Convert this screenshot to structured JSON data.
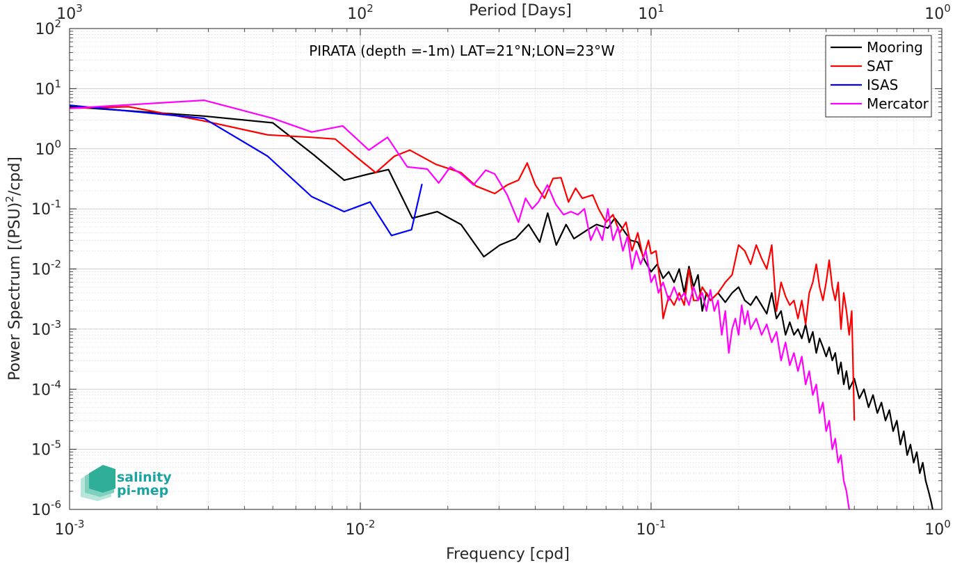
{
  "chart_data": {
    "type": "line",
    "title": "PIRATA (depth =-1m) LAT=21°N;LON=23°W",
    "xlabel": "Frequency [cpd]",
    "ylabel_main": "Power Spectrum [(PSU)",
    "ylabel_sup": "2",
    "ylabel_tail": "/cpd]",
    "x2label": "Period [Days]",
    "xscale": "log",
    "yscale": "log",
    "xlim": [
      0.001,
      1
    ],
    "ylim": [
      1e-06,
      100
    ],
    "grid": true,
    "legend_position": "top-right",
    "x_ticks": [
      {
        "base": "10",
        "exp": "-3",
        "value": 0.001
      },
      {
        "base": "10",
        "exp": "-2",
        "value": 0.01
      },
      {
        "base": "10",
        "exp": "-1",
        "value": 0.1
      },
      {
        "base": "10",
        "exp": "0",
        "value": 1
      }
    ],
    "x2_ticks": [
      {
        "base": "10",
        "exp": "3",
        "value": 0.001
      },
      {
        "base": "10",
        "exp": "2",
        "value": 0.01
      },
      {
        "base": "10",
        "exp": "1",
        "value": 0.1
      },
      {
        "base": "10",
        "exp": "0",
        "value": 1
      }
    ],
    "y_ticks": [
      {
        "base": "10",
        "exp": "2",
        "value": 100
      },
      {
        "base": "10",
        "exp": "1",
        "value": 10
      },
      {
        "base": "10",
        "exp": "0",
        "value": 1
      },
      {
        "base": "10",
        "exp": "-1",
        "value": 0.1
      },
      {
        "base": "10",
        "exp": "-2",
        "value": 0.01
      },
      {
        "base": "10",
        "exp": "-3",
        "value": 0.001
      },
      {
        "base": "10",
        "exp": "-4",
        "value": 0.0001
      },
      {
        "base": "10",
        "exp": "-5",
        "value": 1e-05
      },
      {
        "base": "10",
        "exp": "-6",
        "value": 1e-06
      }
    ],
    "series": [
      {
        "name": "Mooring",
        "color": "#000000",
        "points": [
          [
            0.001,
            5.0
          ],
          [
            0.0029,
            3.5
          ],
          [
            0.005,
            2.7
          ],
          [
            0.0069,
            0.8
          ],
          [
            0.0088,
            0.3
          ],
          [
            0.0107,
            0.38
          ],
          [
            0.0125,
            0.45
          ],
          [
            0.0151,
            0.07
          ],
          [
            0.0184,
            0.09
          ],
          [
            0.0222,
            0.055
          ],
          [
            0.0266,
            0.016
          ],
          [
            0.0302,
            0.025
          ],
          [
            0.0342,
            0.032
          ],
          [
            0.0379,
            0.055
          ],
          [
            0.0414,
            0.028
          ],
          [
            0.0441,
            0.085
          ],
          [
            0.0472,
            0.025
          ],
          [
            0.051,
            0.055
          ],
          [
            0.0543,
            0.032
          ],
          [
            0.0605,
            0.045
          ],
          [
            0.0649,
            0.055
          ],
          [
            0.071,
            0.048
          ],
          [
            0.075,
            0.07
          ],
          [
            0.079,
            0.05
          ],
          [
            0.085,
            0.03
          ],
          [
            0.09,
            0.028
          ],
          [
            0.095,
            0.014
          ],
          [
            0.1,
            0.009
          ],
          [
            0.105,
            0.012
          ],
          [
            0.11,
            0.007
          ],
          [
            0.115,
            0.009
          ],
          [
            0.12,
            0.006
          ],
          [
            0.125,
            0.01
          ],
          [
            0.13,
            0.004
          ],
          [
            0.135,
            0.011
          ],
          [
            0.14,
            0.005
          ],
          [
            0.145,
            0.008
          ],
          [
            0.15,
            0.002
          ],
          [
            0.155,
            0.004
          ],
          [
            0.16,
            0.003
          ],
          [
            0.17,
            0.004
          ],
          [
            0.18,
            0.0028
          ],
          [
            0.19,
            0.004
          ],
          [
            0.2,
            0.005
          ],
          [
            0.21,
            0.003
          ],
          [
            0.22,
            0.0025
          ],
          [
            0.23,
            0.0035
          ],
          [
            0.24,
            0.0025
          ],
          [
            0.25,
            0.0018
          ],
          [
            0.26,
            0.004
          ],
          [
            0.27,
            0.0015
          ],
          [
            0.28,
            0.002
          ],
          [
            0.29,
            0.0008
          ],
          [
            0.3,
            0.0013
          ],
          [
            0.31,
            0.0008
          ],
          [
            0.32,
            0.001
          ],
          [
            0.33,
            0.0007
          ],
          [
            0.34,
            0.0012
          ],
          [
            0.35,
            0.0006
          ],
          [
            0.36,
            0.0009
          ],
          [
            0.37,
            0.0004
          ],
          [
            0.38,
            0.0007
          ],
          [
            0.39,
            0.0005
          ],
          [
            0.4,
            0.00035
          ],
          [
            0.41,
            0.0005
          ],
          [
            0.42,
            0.0003
          ],
          [
            0.43,
            0.0004
          ],
          [
            0.44,
            0.00018
          ],
          [
            0.45,
            0.00028
          ],
          [
            0.46,
            0.00012
          ],
          [
            0.47,
            0.0002
          ],
          [
            0.48,
            0.0001
          ],
          [
            0.5,
            0.00015
          ],
          [
            0.52,
            7e-05
          ],
          [
            0.54,
            0.0001
          ],
          [
            0.56,
            5e-05
          ],
          [
            0.58,
            8e-05
          ],
          [
            0.6,
            4e-05
          ],
          [
            0.62,
            6e-05
          ],
          [
            0.64,
            3e-05
          ],
          [
            0.66,
            4.5e-05
          ],
          [
            0.68,
            2e-05
          ],
          [
            0.7,
            3e-05
          ],
          [
            0.72,
            1.2e-05
          ],
          [
            0.74,
            2e-05
          ],
          [
            0.76,
            8e-06
          ],
          [
            0.78,
            1.2e-05
          ],
          [
            0.8,
            6e-06
          ],
          [
            0.82,
            9e-06
          ],
          [
            0.84,
            4e-06
          ],
          [
            0.86,
            6e-06
          ],
          [
            0.88,
            3e-06
          ],
          [
            0.9,
            2e-06
          ],
          [
            0.92,
            1.3e-06
          ],
          [
            0.93,
            1e-06
          ]
        ]
      },
      {
        "name": "SAT",
        "color": "#ff0000",
        "points": [
          [
            0.001,
            4.7
          ],
          [
            0.0016,
            5.0
          ],
          [
            0.0029,
            2.9
          ],
          [
            0.0048,
            1.7
          ],
          [
            0.0068,
            1.55
          ],
          [
            0.0082,
            1.45
          ],
          [
            0.0098,
            0.7
          ],
          [
            0.0113,
            0.4
          ],
          [
            0.0131,
            0.75
          ],
          [
            0.0148,
            0.95
          ],
          [
            0.0182,
            0.55
          ],
          [
            0.0222,
            0.4
          ],
          [
            0.025,
            0.24
          ],
          [
            0.029,
            0.18
          ],
          [
            0.032,
            0.25
          ],
          [
            0.035,
            0.3
          ],
          [
            0.0375,
            0.58
          ],
          [
            0.04,
            0.25
          ],
          [
            0.043,
            0.15
          ],
          [
            0.046,
            0.32
          ],
          [
            0.049,
            0.33
          ],
          [
            0.052,
            0.13
          ],
          [
            0.055,
            0.22
          ],
          [
            0.058,
            0.15
          ],
          [
            0.063,
            0.17
          ],
          [
            0.066,
            0.1
          ],
          [
            0.07,
            0.06
          ],
          [
            0.074,
            0.08
          ],
          [
            0.078,
            0.04
          ],
          [
            0.082,
            0.06
          ],
          [
            0.086,
            0.02
          ],
          [
            0.09,
            0.04
          ],
          [
            0.094,
            0.015
          ],
          [
            0.098,
            0.03
          ],
          [
            0.1,
            0.018
          ],
          [
            0.104,
            0.02
          ],
          [
            0.108,
            0.005
          ],
          [
            0.11,
            0.0015
          ],
          [
            0.115,
            0.0035
          ],
          [
            0.12,
            0.0025
          ],
          [
            0.125,
            0.004
          ],
          [
            0.13,
            0.0025
          ],
          [
            0.135,
            0.01
          ],
          [
            0.14,
            0.003
          ],
          [
            0.145,
            0.003
          ],
          [
            0.15,
            0.005
          ],
          [
            0.16,
            0.003
          ],
          [
            0.17,
            0.004
          ],
          [
            0.18,
            0.006
          ],
          [
            0.19,
            0.008
          ],
          [
            0.2,
            0.025
          ],
          [
            0.21,
            0.02
          ],
          [
            0.22,
            0.012
          ],
          [
            0.23,
            0.025
          ],
          [
            0.24,
            0.015
          ],
          [
            0.25,
            0.01
          ],
          [
            0.26,
            0.025
          ],
          [
            0.27,
            0.002
          ],
          [
            0.28,
            0.006
          ],
          [
            0.29,
            0.0035
          ],
          [
            0.3,
            0.0025
          ],
          [
            0.31,
            0.003
          ],
          [
            0.32,
            0.0015
          ],
          [
            0.33,
            0.003
          ],
          [
            0.34,
            0.0012
          ],
          [
            0.35,
            0.004
          ],
          [
            0.36,
            0.006
          ],
          [
            0.37,
            0.012
          ],
          [
            0.38,
            0.005
          ],
          [
            0.39,
            0.003
          ],
          [
            0.4,
            0.006
          ],
          [
            0.41,
            0.014
          ],
          [
            0.42,
            0.005
          ],
          [
            0.43,
            0.003
          ],
          [
            0.44,
            0.006
          ],
          [
            0.45,
            0.001
          ],
          [
            0.46,
            0.004
          ],
          [
            0.47,
            0.002
          ],
          [
            0.48,
            0.0008
          ],
          [
            0.49,
            0.002
          ],
          [
            0.5,
            3e-05
          ]
        ]
      },
      {
        "name": "ISAS",
        "color": "#0000ff",
        "points": [
          [
            0.001,
            5.3
          ],
          [
            0.0029,
            3.2
          ],
          [
            0.0048,
            0.75
          ],
          [
            0.0068,
            0.16
          ],
          [
            0.0088,
            0.09
          ],
          [
            0.0108,
            0.13
          ],
          [
            0.0128,
            0.036
          ],
          [
            0.015,
            0.045
          ],
          [
            0.0163,
            0.26
          ]
        ]
      },
      {
        "name": "Mercator",
        "color": "#ff00ff",
        "points": [
          [
            0.001,
            4.7
          ],
          [
            0.0029,
            6.4
          ],
          [
            0.005,
            3.2
          ],
          [
            0.0068,
            1.9
          ],
          [
            0.0087,
            2.4
          ],
          [
            0.0107,
            0.95
          ],
          [
            0.0124,
            1.55
          ],
          [
            0.0145,
            0.5
          ],
          [
            0.017,
            0.46
          ],
          [
            0.0186,
            0.27
          ],
          [
            0.0204,
            0.5
          ],
          [
            0.0222,
            0.38
          ],
          [
            0.0245,
            0.25
          ],
          [
            0.027,
            0.44
          ],
          [
            0.029,
            0.38
          ],
          [
            0.032,
            0.17
          ],
          [
            0.035,
            0.06
          ],
          [
            0.037,
            0.15
          ],
          [
            0.039,
            0.1
          ],
          [
            0.041,
            0.13
          ],
          [
            0.044,
            0.25
          ],
          [
            0.047,
            0.12
          ],
          [
            0.05,
            0.08
          ],
          [
            0.053,
            0.09
          ],
          [
            0.056,
            0.08
          ],
          [
            0.059,
            0.1
          ],
          [
            0.062,
            0.03
          ],
          [
            0.065,
            0.05
          ],
          [
            0.068,
            0.03
          ],
          [
            0.071,
            0.1
          ],
          [
            0.074,
            0.03
          ],
          [
            0.077,
            0.05
          ],
          [
            0.08,
            0.02
          ],
          [
            0.083,
            0.035
          ],
          [
            0.086,
            0.01
          ],
          [
            0.089,
            0.02
          ],
          [
            0.092,
            0.012
          ],
          [
            0.096,
            0.02
          ],
          [
            0.1,
            0.006
          ],
          [
            0.103,
            0.008
          ],
          [
            0.106,
            0.004
          ],
          [
            0.11,
            0.006
          ],
          [
            0.115,
            0.003
          ],
          [
            0.12,
            0.005
          ],
          [
            0.125,
            0.003
          ],
          [
            0.13,
            0.004
          ],
          [
            0.135,
            0.0025
          ],
          [
            0.14,
            0.005
          ],
          [
            0.145,
            0.003
          ],
          [
            0.15,
            0.004
          ],
          [
            0.155,
            0.002
          ],
          [
            0.16,
            0.0045
          ],
          [
            0.165,
            0.002
          ],
          [
            0.17,
            0.003
          ],
          [
            0.175,
            0.0008
          ],
          [
            0.18,
            0.002
          ],
          [
            0.185,
            0.0004
          ],
          [
            0.19,
            0.001
          ],
          [
            0.195,
            0.0015
          ],
          [
            0.2,
            0.0008
          ],
          [
            0.205,
            0.0025
          ],
          [
            0.21,
            0.0012
          ],
          [
            0.215,
            0.002
          ],
          [
            0.22,
            0.001
          ],
          [
            0.23,
            0.0015
          ],
          [
            0.24,
            0.0008
          ],
          [
            0.25,
            0.0012
          ],
          [
            0.26,
            0.0006
          ],
          [
            0.27,
            0.0009
          ],
          [
            0.28,
            0.0003
          ],
          [
            0.29,
            0.0006
          ],
          [
            0.3,
            0.00025
          ],
          [
            0.31,
            0.0004
          ],
          [
            0.32,
            0.0002
          ],
          [
            0.33,
            0.00035
          ],
          [
            0.34,
            0.00012
          ],
          [
            0.35,
            0.0002
          ],
          [
            0.36,
            8e-05
          ],
          [
            0.37,
            0.00012
          ],
          [
            0.38,
            4e-05
          ],
          [
            0.39,
            6e-05
          ],
          [
            0.4,
            2e-05
          ],
          [
            0.41,
            3e-05
          ],
          [
            0.42,
            1e-05
          ],
          [
            0.43,
            1.5e-05
          ],
          [
            0.44,
            6e-06
          ],
          [
            0.45,
            8e-06
          ],
          [
            0.46,
            3e-06
          ],
          [
            0.47,
            2e-06
          ],
          [
            0.48,
            1e-06
          ]
        ]
      }
    ]
  },
  "logo": {
    "line1": "salinity",
    "line2": "pi-mep",
    "color": "#1aa3a0"
  }
}
